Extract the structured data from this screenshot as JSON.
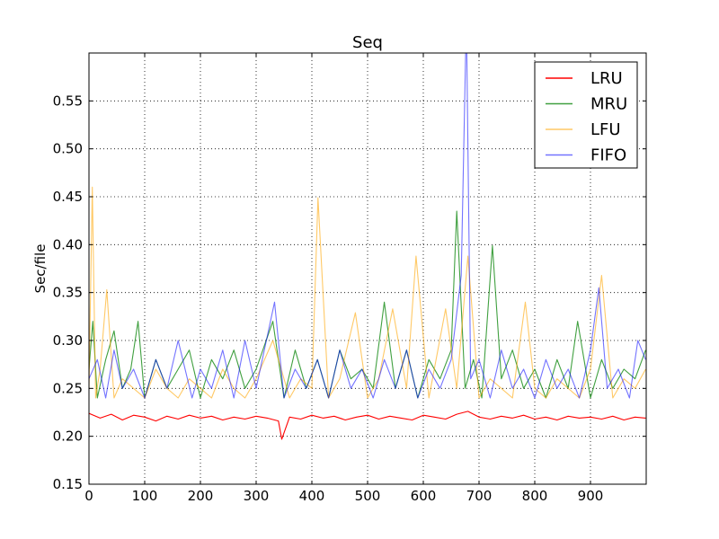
{
  "chart_data": {
    "type": "line",
    "title": "Seq",
    "xlabel": "",
    "ylabel": "Sec/file",
    "xlim": [
      0,
      1000
    ],
    "ylim": [
      0.15,
      0.6
    ],
    "xticks": [
      0,
      100,
      200,
      300,
      400,
      500,
      600,
      700,
      800,
      900
    ],
    "xtick_labels": [
      "0",
      "100",
      "200",
      "300",
      "400",
      "500",
      "600",
      "700",
      "800",
      "900"
    ],
    "yticks": [
      0.15,
      0.2,
      0.25,
      0.3,
      0.35,
      0.4,
      0.45,
      0.5,
      0.55
    ],
    "ytick_labels": [
      "0.15",
      "0.20",
      "0.25",
      "0.30",
      "0.35",
      "0.40",
      "0.45",
      "0.50",
      "0.55"
    ],
    "grid": true,
    "legend_position": "top-right",
    "series": [
      {
        "name": "LRU",
        "color": "#ff0000",
        "opacity": 1.0,
        "x": [
          0,
          20,
          40,
          60,
          80,
          100,
          120,
          140,
          160,
          180,
          200,
          220,
          240,
          260,
          280,
          300,
          320,
          340,
          346,
          360,
          380,
          400,
          420,
          440,
          460,
          480,
          500,
          520,
          540,
          560,
          580,
          600,
          620,
          640,
          660,
          680,
          700,
          720,
          740,
          760,
          780,
          800,
          820,
          840,
          860,
          880,
          900,
          920,
          940,
          960,
          980,
          999
        ],
        "values": [
          0.224,
          0.219,
          0.223,
          0.217,
          0.222,
          0.22,
          0.216,
          0.221,
          0.218,
          0.222,
          0.219,
          0.221,
          0.217,
          0.22,
          0.218,
          0.221,
          0.219,
          0.216,
          0.197,
          0.22,
          0.218,
          0.222,
          0.219,
          0.221,
          0.217,
          0.22,
          0.222,
          0.218,
          0.221,
          0.219,
          0.217,
          0.222,
          0.22,
          0.218,
          0.223,
          0.226,
          0.22,
          0.218,
          0.221,
          0.219,
          0.222,
          0.218,
          0.22,
          0.217,
          0.221,
          0.219,
          0.22,
          0.218,
          0.221,
          0.217,
          0.22,
          0.219
        ]
      },
      {
        "name": "MRU",
        "color": "#008000",
        "opacity": 0.75,
        "x": [
          0,
          7,
          15,
          30,
          45,
          60,
          75,
          88,
          100,
          120,
          140,
          160,
          180,
          200,
          220,
          240,
          260,
          280,
          300,
          330,
          350,
          370,
          390,
          410,
          430,
          450,
          470,
          490,
          510,
          530,
          550,
          570,
          590,
          610,
          630,
          650,
          660,
          675,
          690,
          705,
          724,
          740,
          760,
          780,
          800,
          820,
          840,
          860,
          877,
          900,
          920,
          940,
          960,
          980,
          999
        ],
        "values": [
          0.27,
          0.32,
          0.24,
          0.28,
          0.31,
          0.25,
          0.27,
          0.32,
          0.24,
          0.28,
          0.25,
          0.27,
          0.29,
          0.24,
          0.28,
          0.26,
          0.29,
          0.25,
          0.27,
          0.32,
          0.24,
          0.29,
          0.25,
          0.28,
          0.24,
          0.29,
          0.26,
          0.27,
          0.25,
          0.34,
          0.25,
          0.29,
          0.24,
          0.28,
          0.26,
          0.29,
          0.435,
          0.25,
          0.28,
          0.24,
          0.399,
          0.26,
          0.29,
          0.25,
          0.27,
          0.24,
          0.28,
          0.25,
          0.32,
          0.24,
          0.28,
          0.25,
          0.27,
          0.26,
          0.29
        ]
      },
      {
        "name": "LFU",
        "color": "#ffa500",
        "opacity": 0.6,
        "x": [
          0,
          6,
          12,
          20,
          32,
          45,
          60,
          80,
          100,
          120,
          140,
          160,
          180,
          200,
          220,
          240,
          260,
          280,
          300,
          330,
          360,
          380,
          400,
          411,
          430,
          450,
          478,
          500,
          520,
          545,
          570,
          587,
          610,
          640,
          660,
          680,
          700,
          720,
          740,
          760,
          783,
          800,
          820,
          840,
          860,
          880,
          900,
          920,
          940,
          960,
          980,
          999
        ],
        "values": [
          0.25,
          0.46,
          0.24,
          0.27,
          0.353,
          0.24,
          0.26,
          0.25,
          0.24,
          0.27,
          0.25,
          0.24,
          0.26,
          0.25,
          0.24,
          0.27,
          0.25,
          0.24,
          0.26,
          0.3,
          0.24,
          0.26,
          0.25,
          0.449,
          0.24,
          0.26,
          0.329,
          0.24,
          0.26,
          0.333,
          0.25,
          0.388,
          0.24,
          0.333,
          0.25,
          0.388,
          0.24,
          0.26,
          0.25,
          0.24,
          0.34,
          0.25,
          0.24,
          0.26,
          0.25,
          0.24,
          0.27,
          0.368,
          0.24,
          0.26,
          0.25,
          0.27
        ]
      },
      {
        "name": "FIFO",
        "color": "#0000ff",
        "opacity": 0.55,
        "x": [
          0,
          15,
          30,
          45,
          60,
          80,
          100,
          120,
          140,
          160,
          185,
          200,
          220,
          240,
          260,
          280,
          300,
          333,
          350,
          370,
          390,
          410,
          430,
          450,
          470,
          490,
          510,
          530,
          550,
          570,
          590,
          610,
          630,
          650,
          668,
          676,
          678,
          685,
          700,
          720,
          740,
          760,
          780,
          800,
          820,
          840,
          860,
          880,
          900,
          915,
          930,
          950,
          970,
          985,
          999
        ],
        "values": [
          0.26,
          0.28,
          0.24,
          0.29,
          0.25,
          0.27,
          0.24,
          0.28,
          0.25,
          0.3,
          0.24,
          0.27,
          0.25,
          0.29,
          0.24,
          0.3,
          0.25,
          0.34,
          0.24,
          0.27,
          0.25,
          0.28,
          0.24,
          0.29,
          0.25,
          0.27,
          0.24,
          0.28,
          0.25,
          0.29,
          0.24,
          0.27,
          0.25,
          0.28,
          0.368,
          0.6,
          0.6,
          0.26,
          0.28,
          0.24,
          0.29,
          0.25,
          0.27,
          0.24,
          0.28,
          0.25,
          0.27,
          0.24,
          0.29,
          0.355,
          0.25,
          0.27,
          0.24,
          0.3,
          0.28
        ]
      }
    ]
  }
}
